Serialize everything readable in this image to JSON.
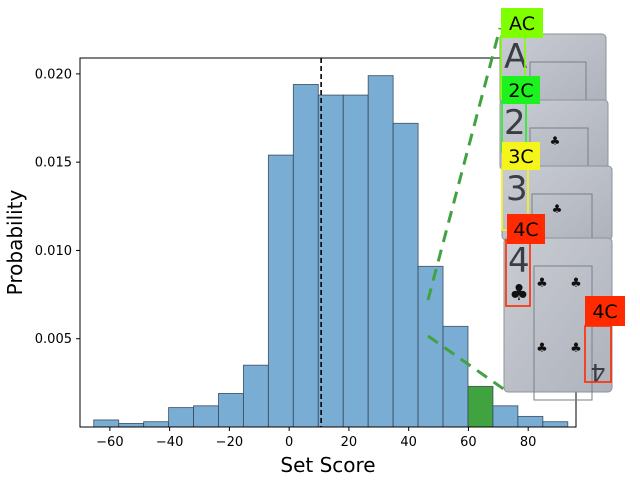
{
  "chart_data": {
    "type": "bar",
    "xlabel": "Set Score",
    "ylabel": "Probability",
    "xlim": [
      -70,
      96
    ],
    "ylim": [
      0,
      0.0209
    ],
    "x_ticks": [
      -60,
      -40,
      -20,
      0,
      20,
      40,
      60,
      80
    ],
    "x_tick_labels": [
      "−60",
      "−40",
      "−20",
      "0",
      "20",
      "40",
      "60",
      "80"
    ],
    "y_ticks": [
      0.005,
      0.01,
      0.015,
      0.02
    ],
    "y_tick_labels": [
      "0.005",
      "0.010",
      "0.015",
      "0.020"
    ],
    "bin_width": 8.35,
    "bin_left_edges": [
      -65.4,
      -57.05,
      -48.7,
      -40.35,
      -32.0,
      -23.65,
      -15.3,
      -6.95,
      1.4,
      9.75,
      18.1,
      26.45,
      34.8,
      43.15,
      51.5,
      59.85,
      68.2,
      76.55,
      84.9
    ],
    "values": [
      0.0004,
      0.0002,
      0.0003,
      0.0011,
      0.0012,
      0.0019,
      0.0035,
      0.0154,
      0.0194,
      0.0188,
      0.0188,
      0.0199,
      0.0172,
      0.0091,
      0.0057,
      0.0023,
      0.0012,
      0.0006,
      0.0003
    ],
    "highlight_index": 15,
    "bar_color": "#7aadd3",
    "highlight_color": "#41a33f",
    "reference_line_x": 10.7
  },
  "card_labels": [
    {
      "text": "AC",
      "color": "#80ff00"
    },
    {
      "text": "2C",
      "color": "#1ef21e"
    },
    {
      "text": "3C",
      "color": "#f5f51a"
    },
    {
      "text": "4C",
      "color": "#ff2a00"
    },
    {
      "text": "4C",
      "color": "#ff2a00"
    }
  ]
}
